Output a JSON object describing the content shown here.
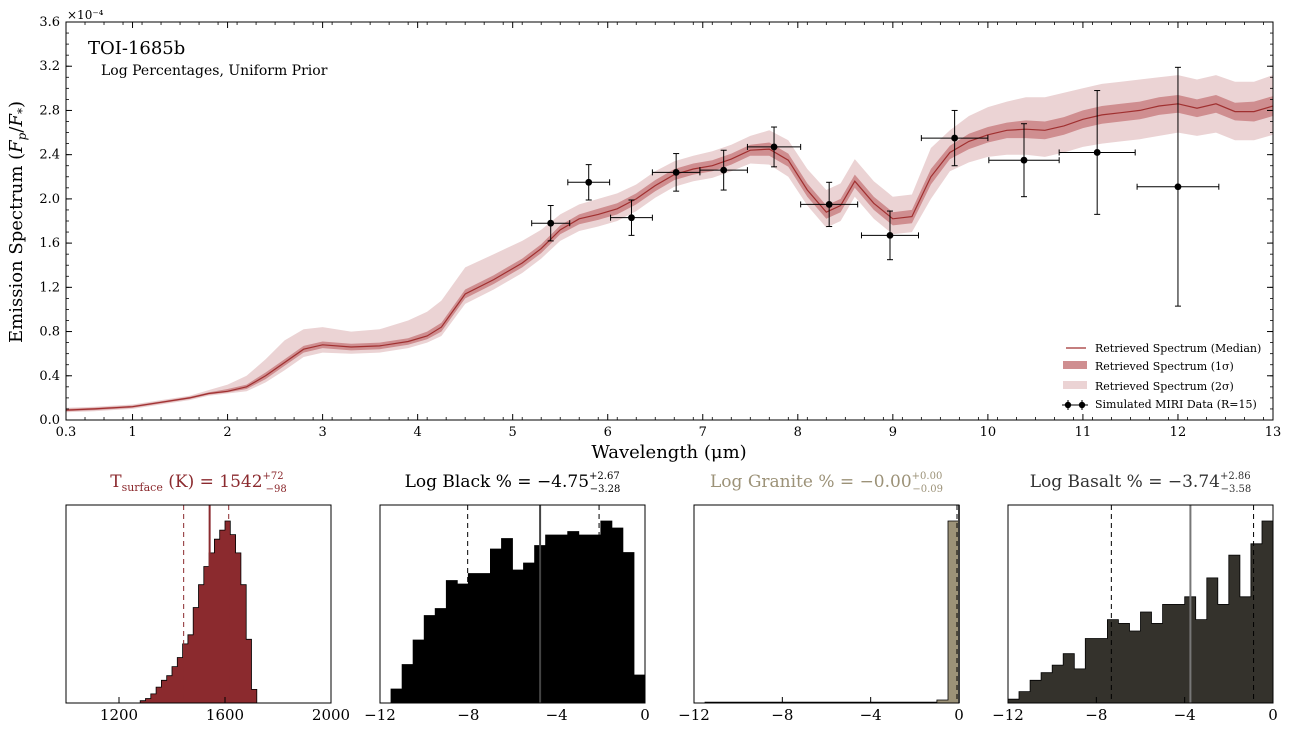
{
  "colors": {
    "median": "#a03030",
    "band1": "#cf8e90",
    "band2": "#ebd3d4",
    "surface": "#8b2a2e",
    "black": "#000000",
    "granite": "#9c9278",
    "basalt": "#34322c"
  },
  "chart_data": [
    {
      "type": "line",
      "annotation_title": "TOI-1685b",
      "annotation_subtitle": "Log Percentages, Uniform Prior",
      "xlabel": "Wavelength (μm)",
      "ylabel": "Emission Spectrum (F_p/F_*)",
      "y_multiplier": "×10⁻⁴",
      "xlim": [
        0.3,
        13
      ],
      "ylim": [
        0,
        3.6
      ],
      "x_ticks": [
        0.3,
        1,
        2,
        3,
        4,
        5,
        6,
        7,
        8,
        9,
        10,
        11,
        12,
        13
      ],
      "y_ticks": [
        0.0,
        0.4,
        0.8,
        1.2,
        1.6,
        2.0,
        2.4,
        2.8,
        3.2,
        3.6
      ],
      "y_tick_labels": [
        "0.0",
        "0.4",
        "0.8",
        "1.2",
        "1.6",
        "2.0",
        "2.4",
        "2.8",
        "3.2",
        "3.6"
      ],
      "x_tick_labels": [
        "0.3",
        "1",
        "2",
        "3",
        "4",
        "5",
        "6",
        "7",
        "8",
        "9",
        "10",
        "11",
        "12",
        "13"
      ],
      "legend_position": "bottom-right",
      "legend": [
        "Retrieved Spectrum (Median)",
        "Retrieved Spectrum (1σ)",
        "Retrieved Spectrum (2σ)",
        "Simulated MIRI Data (R=15)"
      ],
      "spectrum": {
        "x": [
          0.3,
          0.6,
          1.0,
          1.3,
          1.6,
          1.8,
          2.0,
          2.2,
          2.4,
          2.6,
          2.8,
          3.0,
          3.3,
          3.6,
          3.9,
          4.1,
          4.25,
          4.5,
          4.8,
          5.1,
          5.3,
          5.5,
          5.7,
          5.9,
          6.1,
          6.3,
          6.5,
          6.7,
          6.9,
          7.1,
          7.3,
          7.5,
          7.7,
          7.9,
          8.1,
          8.3,
          8.45,
          8.6,
          8.8,
          9.0,
          9.2,
          9.4,
          9.6,
          9.8,
          10.0,
          10.2,
          10.4,
          10.6,
          10.8,
          11.0,
          11.2,
          11.4,
          11.6,
          11.8,
          12.0,
          12.2,
          12.4,
          12.6,
          12.8,
          13.0
        ],
        "median": [
          0.09,
          0.1,
          0.12,
          0.16,
          0.2,
          0.24,
          0.26,
          0.3,
          0.4,
          0.52,
          0.64,
          0.68,
          0.66,
          0.67,
          0.71,
          0.76,
          0.84,
          1.14,
          1.27,
          1.42,
          1.55,
          1.72,
          1.82,
          1.86,
          1.91,
          2.0,
          2.12,
          2.22,
          2.27,
          2.3,
          2.36,
          2.44,
          2.45,
          2.35,
          2.08,
          1.88,
          1.94,
          2.16,
          1.96,
          1.82,
          1.84,
          2.2,
          2.42,
          2.52,
          2.58,
          2.62,
          2.63,
          2.62,
          2.66,
          2.72,
          2.76,
          2.78,
          2.8,
          2.84,
          2.86,
          2.82,
          2.86,
          2.79,
          2.79,
          2.84
        ],
        "lo1": [
          0.08,
          0.09,
          0.11,
          0.15,
          0.19,
          0.23,
          0.25,
          0.28,
          0.37,
          0.49,
          0.61,
          0.65,
          0.63,
          0.64,
          0.68,
          0.73,
          0.8,
          1.1,
          1.23,
          1.38,
          1.51,
          1.68,
          1.77,
          1.81,
          1.86,
          1.95,
          2.07,
          2.17,
          2.22,
          2.25,
          2.31,
          2.39,
          2.39,
          2.29,
          2.02,
          1.82,
          1.88,
          2.1,
          1.9,
          1.76,
          1.78,
          2.13,
          2.36,
          2.45,
          2.51,
          2.55,
          2.55,
          2.54,
          2.58,
          2.64,
          2.68,
          2.7,
          2.72,
          2.76,
          2.78,
          2.74,
          2.78,
          2.71,
          2.7,
          2.75
        ],
        "hi1": [
          0.1,
          0.11,
          0.13,
          0.17,
          0.21,
          0.25,
          0.28,
          0.32,
          0.43,
          0.55,
          0.67,
          0.71,
          0.69,
          0.7,
          0.74,
          0.8,
          0.88,
          1.18,
          1.31,
          1.46,
          1.59,
          1.76,
          1.86,
          1.91,
          1.96,
          2.05,
          2.17,
          2.27,
          2.32,
          2.35,
          2.41,
          2.49,
          2.51,
          2.41,
          2.14,
          1.94,
          2.0,
          2.22,
          2.02,
          1.88,
          1.9,
          2.27,
          2.48,
          2.59,
          2.65,
          2.69,
          2.71,
          2.7,
          2.74,
          2.8,
          2.84,
          2.86,
          2.88,
          2.92,
          2.94,
          2.9,
          2.94,
          2.87,
          2.88,
          2.93
        ],
        "lo2": [
          0.07,
          0.08,
          0.1,
          0.14,
          0.18,
          0.22,
          0.24,
          0.26,
          0.34,
          0.45,
          0.57,
          0.61,
          0.6,
          0.61,
          0.65,
          0.7,
          0.76,
          1.05,
          1.18,
          1.33,
          1.46,
          1.62,
          1.71,
          1.75,
          1.8,
          1.89,
          2.01,
          2.11,
          2.16,
          2.19,
          2.25,
          2.32,
          2.31,
          2.2,
          1.94,
          1.74,
          1.8,
          2.02,
          1.82,
          1.68,
          1.7,
          2.0,
          2.25,
          2.33,
          2.38,
          2.4,
          2.4,
          2.38,
          2.42,
          2.47,
          2.5,
          2.52,
          2.54,
          2.57,
          2.6,
          2.57,
          2.6,
          2.53,
          2.53,
          2.58
        ],
        "hi2": [
          0.11,
          0.12,
          0.14,
          0.18,
          0.22,
          0.27,
          0.32,
          0.4,
          0.55,
          0.72,
          0.82,
          0.84,
          0.8,
          0.82,
          0.9,
          0.98,
          1.08,
          1.38,
          1.5,
          1.62,
          1.72,
          1.86,
          1.95,
          2.0,
          2.05,
          2.13,
          2.25,
          2.34,
          2.39,
          2.43,
          2.49,
          2.57,
          2.62,
          2.53,
          2.27,
          2.08,
          2.14,
          2.36,
          2.16,
          2.02,
          2.04,
          2.46,
          2.62,
          2.75,
          2.83,
          2.88,
          2.92,
          2.92,
          2.96,
          3.0,
          3.04,
          3.06,
          3.08,
          3.1,
          3.12,
          3.08,
          3.12,
          3.06,
          3.06,
          3.12
        ]
      },
      "data_points": [
        {
          "x": 5.4,
          "y": 1.78,
          "xerr": 0.2,
          "yerr": 0.16
        },
        {
          "x": 5.8,
          "y": 2.15,
          "xerr": 0.22,
          "yerr": 0.16
        },
        {
          "x": 6.25,
          "y": 1.83,
          "xerr": 0.22,
          "yerr": 0.16
        },
        {
          "x": 6.72,
          "y": 2.24,
          "xerr": 0.25,
          "yerr": 0.17
        },
        {
          "x": 7.22,
          "y": 2.26,
          "xerr": 0.25,
          "yerr": 0.18
        },
        {
          "x": 7.75,
          "y": 2.47,
          "xerr": 0.28,
          "yerr": 0.18
        },
        {
          "x": 8.33,
          "y": 1.95,
          "xerr": 0.3,
          "yerr": 0.2
        },
        {
          "x": 8.97,
          "y": 1.67,
          "xerr": 0.3,
          "yerr": 0.22
        },
        {
          "x": 9.65,
          "y": 2.55,
          "xerr": 0.35,
          "yerr": 0.25
        },
        {
          "x": 10.38,
          "y": 2.35,
          "xerr": 0.37,
          "yerr": 0.33
        },
        {
          "x": 11.15,
          "y": 2.42,
          "xerr": 0.4,
          "yerr": 0.56
        },
        {
          "x": 12.0,
          "y": 2.11,
          "xerr": 0.43,
          "yerr": 1.08
        }
      ]
    },
    {
      "type": "histogram",
      "title_main": "T",
      "title_sub": "surface",
      "title_rest": " (K) = 1542",
      "sup": "+72",
      "sub": "−98",
      "color_key": "surface",
      "xlim": [
        1000,
        2000
      ],
      "x_ticks": [
        1200,
        1600,
        2000
      ],
      "x_tick_labels": [
        "1200",
        "1600",
        "2000"
      ],
      "bin_width": 20,
      "bin_start": 1280,
      "counts": [
        1,
        2,
        4,
        7,
        10,
        12,
        16,
        20,
        26,
        30,
        42,
        52,
        60,
        66,
        72,
        76,
        80,
        74,
        66,
        52,
        28,
        6
      ],
      "median": 1542,
      "lower": 1444,
      "upper": 1614
    },
    {
      "type": "histogram",
      "title_main": "Log Black % = ",
      "title_rest": "−4.75",
      "sup": "+2.67",
      "sub": "−3.28",
      "color_key": "black",
      "xlim": [
        -12,
        0
      ],
      "x_ticks": [
        -12,
        -8,
        -4,
        0
      ],
      "x_tick_labels": [
        "−12",
        "−8",
        "−4",
        "0"
      ],
      "bin_width": 0.5,
      "bin_start": -12,
      "counts": [
        0,
        4,
        11,
        18,
        25,
        27,
        35,
        34,
        37,
        37,
        44,
        47,
        38,
        40,
        45,
        48,
        48,
        49,
        48,
        48,
        52,
        50,
        43,
        8
      ],
      "median": -4.75,
      "lower": -8.03,
      "upper": -2.08
    },
    {
      "type": "histogram",
      "title_main": "Log Granite % = ",
      "title_rest": "−0.00",
      "sup": "+0.00",
      "sub": "−0.09",
      "color_key": "granite",
      "xlim": [
        -12,
        0
      ],
      "x_ticks": [
        -12,
        -8,
        -4,
        0
      ],
      "x_tick_labels": [
        "−12",
        "−8",
        "−4",
        "0"
      ],
      "bin_width": 0.5,
      "bin_start": -12,
      "counts": [
        0,
        0.3,
        0.3,
        0.3,
        0.3,
        0.3,
        0.3,
        0.3,
        0.3,
        0.3,
        0.3,
        0.3,
        0.3,
        0.3,
        0.3,
        0.3,
        0.3,
        0.3,
        0.3,
        0.3,
        0.3,
        0.3,
        1,
        60
      ],
      "median": 0,
      "lower": -0.09,
      "upper": 0
    },
    {
      "type": "histogram",
      "title_main": "Log Basalt % = ",
      "title_rest": "−3.74",
      "sup": "+2.86",
      "sub": "−3.58",
      "color_key": "basalt",
      "xlim": [
        -12,
        0
      ],
      "x_ticks": [
        -12,
        -8,
        -4,
        0
      ],
      "x_tick_labels": [
        "−12",
        "−8",
        "−4",
        "0"
      ],
      "bin_width": 0.5,
      "bin_start": -12,
      "counts": [
        1,
        3,
        6,
        8,
        10,
        13,
        9,
        17,
        17,
        22,
        21,
        19,
        24,
        21,
        26,
        26,
        28,
        22,
        33,
        26,
        39,
        28,
        42,
        48
      ],
      "median": -3.74,
      "lower": -7.32,
      "upper": -0.88
    }
  ]
}
